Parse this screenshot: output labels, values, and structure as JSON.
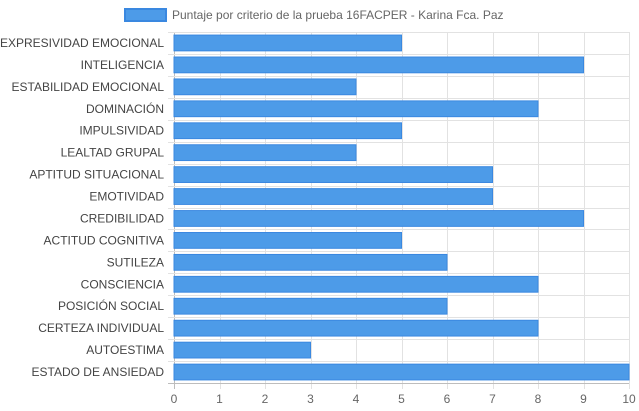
{
  "chart_data": {
    "type": "bar",
    "orientation": "horizontal",
    "categories": [
      "EXPRESIVIDAD EMOCIONAL",
      "INTELIGENCIA",
      "ESTABILIDAD EMOCIONAL",
      "DOMINACIÓN",
      "IMPULSIVIDAD",
      "LEALTAD GRUPAL",
      "APTITUD SITUACIONAL",
      "EMOTIVIDAD",
      "CREDIBILIDAD",
      "ACTITUD COGNITIVA",
      "SUTILEZA",
      "CONSCIENCIA",
      "POSICIÓN SOCIAL",
      "CERTEZA INDIVIDUAL",
      "AUTOESTIMA",
      "ESTADO DE ANSIEDAD"
    ],
    "series": [
      {
        "name": "Puntaje por criterio de la prueba 16FACPER - Karina Fca. Paz",
        "values": [
          5,
          9,
          4,
          8,
          5,
          4,
          7,
          7,
          9,
          5,
          6,
          8,
          6,
          8,
          3,
          10
        ],
        "color": "#4d9be8",
        "border_color": "#3a88e0"
      }
    ],
    "xlim": [
      0,
      10
    ],
    "x_ticks": [
      "0",
      "1",
      "2",
      "3",
      "4",
      "5",
      "6",
      "7",
      "8",
      "9",
      "10"
    ],
    "grid": true,
    "legend_position": "top"
  }
}
